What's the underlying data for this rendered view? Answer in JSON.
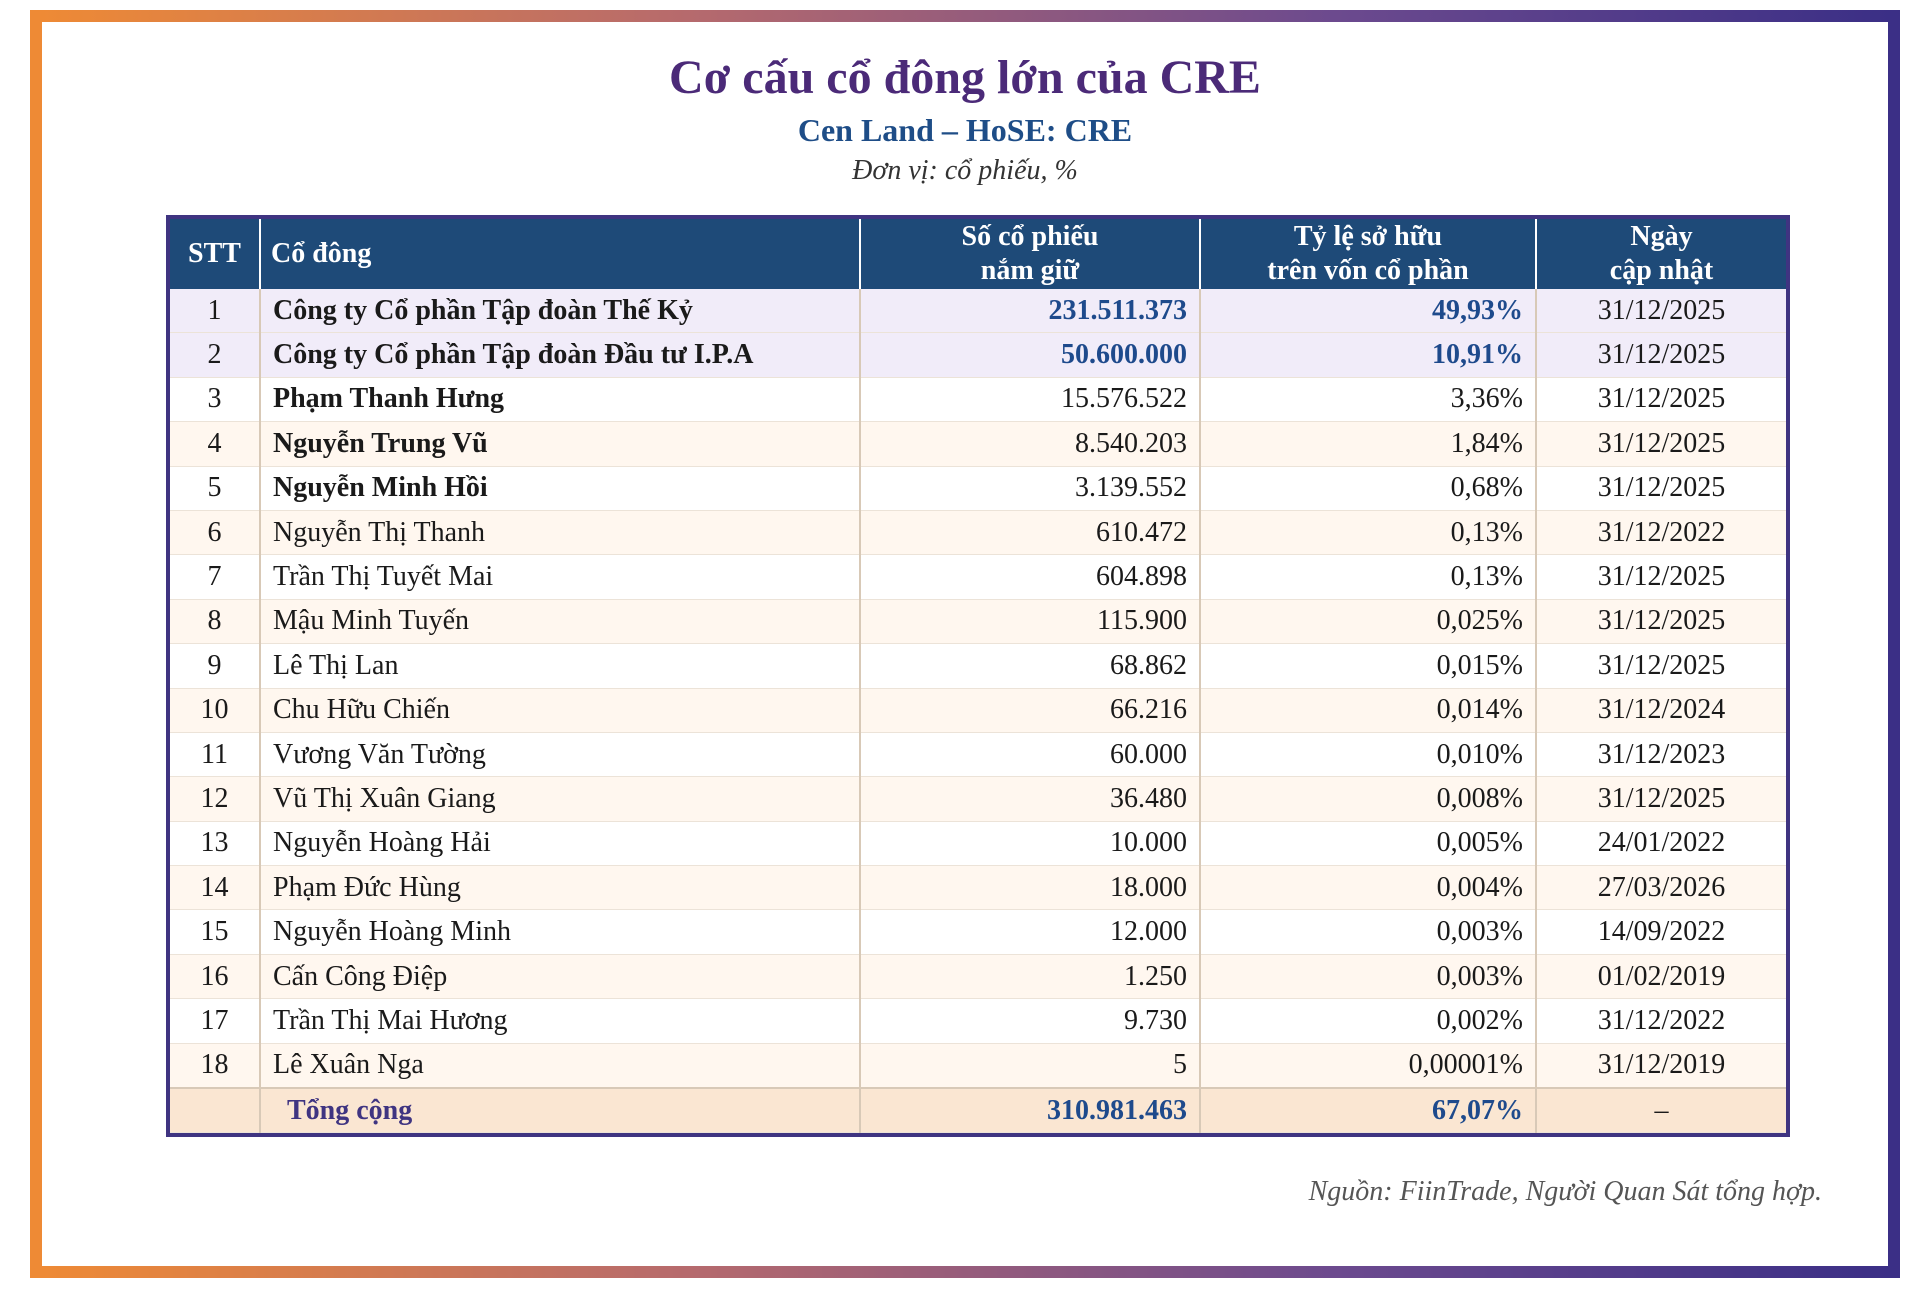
{
  "header": {
    "title": "Cơ cấu cổ đông lớn của CRE",
    "subtitle": "Cen Land – HoSE: CRE",
    "unit": "Đơn vị: cổ phiếu, %"
  },
  "table": {
    "columns": {
      "stt": "STT",
      "shareholder": "Cổ đông",
      "shares_line1": "Số cổ phiếu",
      "shares_line2": "nắm giữ",
      "ratio_line1": "Tỷ lệ sở hữu",
      "ratio_line2": "trên vốn cổ phần",
      "date_line1": "Ngày",
      "date_line2": "cập nhật"
    },
    "rows": [
      {
        "stt": "1",
        "name": "Công ty Cổ phần Tập đoàn Thế Kỷ",
        "shares": "231.511.373",
        "ratio": "49,93%",
        "date": "31/12/2025"
      },
      {
        "stt": "2",
        "name": "Công ty Cổ phần Tập đoàn Đầu tư I.P.A",
        "shares": "50.600.000",
        "ratio": "10,91%",
        "date": "31/12/2025"
      },
      {
        "stt": "3",
        "name": "Phạm Thanh Hưng",
        "shares": "15.576.522",
        "ratio": "3,36%",
        "date": "31/12/2025"
      },
      {
        "stt": "4",
        "name": "Nguyễn Trung Vũ",
        "shares": "8.540.203",
        "ratio": "1,84%",
        "date": "31/12/2025"
      },
      {
        "stt": "5",
        "name": "Nguyễn Minh Hồi",
        "shares": "3.139.552",
        "ratio": "0,68%",
        "date": "31/12/2025"
      },
      {
        "stt": "6",
        "name": "Nguyễn Thị Thanh",
        "shares": "610.472",
        "ratio": "0,13%",
        "date": "31/12/2022"
      },
      {
        "stt": "7",
        "name": "Trần Thị Tuyết Mai",
        "shares": "604.898",
        "ratio": "0,13%",
        "date": "31/12/2025"
      },
      {
        "stt": "8",
        "name": "Mậu Minh Tuyến",
        "shares": "115.900",
        "ratio": "0,025%",
        "date": "31/12/2025"
      },
      {
        "stt": "9",
        "name": "Lê Thị Lan",
        "shares": "68.862",
        "ratio": "0,015%",
        "date": "31/12/2025"
      },
      {
        "stt": "10",
        "name": "Chu Hữu Chiến",
        "shares": "66.216",
        "ratio": "0,014%",
        "date": "31/12/2024"
      },
      {
        "stt": "11",
        "name": "Vương Văn Tường",
        "shares": "60.000",
        "ratio": "0,010%",
        "date": "31/12/2023"
      },
      {
        "stt": "12",
        "name": "Vũ Thị Xuân Giang",
        "shares": "36.480",
        "ratio": "0,008%",
        "date": "31/12/2025"
      },
      {
        "stt": "13",
        "name": "Nguyễn Hoàng Hải",
        "shares": "10.000",
        "ratio": "0,005%",
        "date": "24/01/2022"
      },
      {
        "stt": "14",
        "name": "Phạm Đức Hùng",
        "shares": "18.000",
        "ratio": "0,004%",
        "date": "27/03/2026"
      },
      {
        "stt": "15",
        "name": "Nguyễn Hoàng Minh",
        "shares": "12.000",
        "ratio": "0,003%",
        "date": "14/09/2022"
      },
      {
        "stt": "16",
        "name": "Cấn Công Điệp",
        "shares": "1.250",
        "ratio": "0,003%",
        "date": "01/02/2019"
      },
      {
        "stt": "17",
        "name": "Trần Thị Mai Hương",
        "shares": "9.730",
        "ratio": "0,002%",
        "date": "31/12/2022"
      },
      {
        "stt": "18",
        "name": "Lê Xuân Nga",
        "shares": "5",
        "ratio": "0,00001%",
        "date": "31/12/2019"
      }
    ],
    "total": {
      "stt": "",
      "name": "Tổng cộng",
      "shares": "310.981.463",
      "ratio": "67,07%",
      "date": "–"
    }
  },
  "footer": {
    "source": "Nguồn: FiinTrade, Người Quan Sát tổng hợp."
  },
  "colors": {
    "title": "#4b2a78",
    "subtitle": "#1e4d87",
    "header_bg": "#1e4a78",
    "accent_number": "#1e4a8c"
  }
}
